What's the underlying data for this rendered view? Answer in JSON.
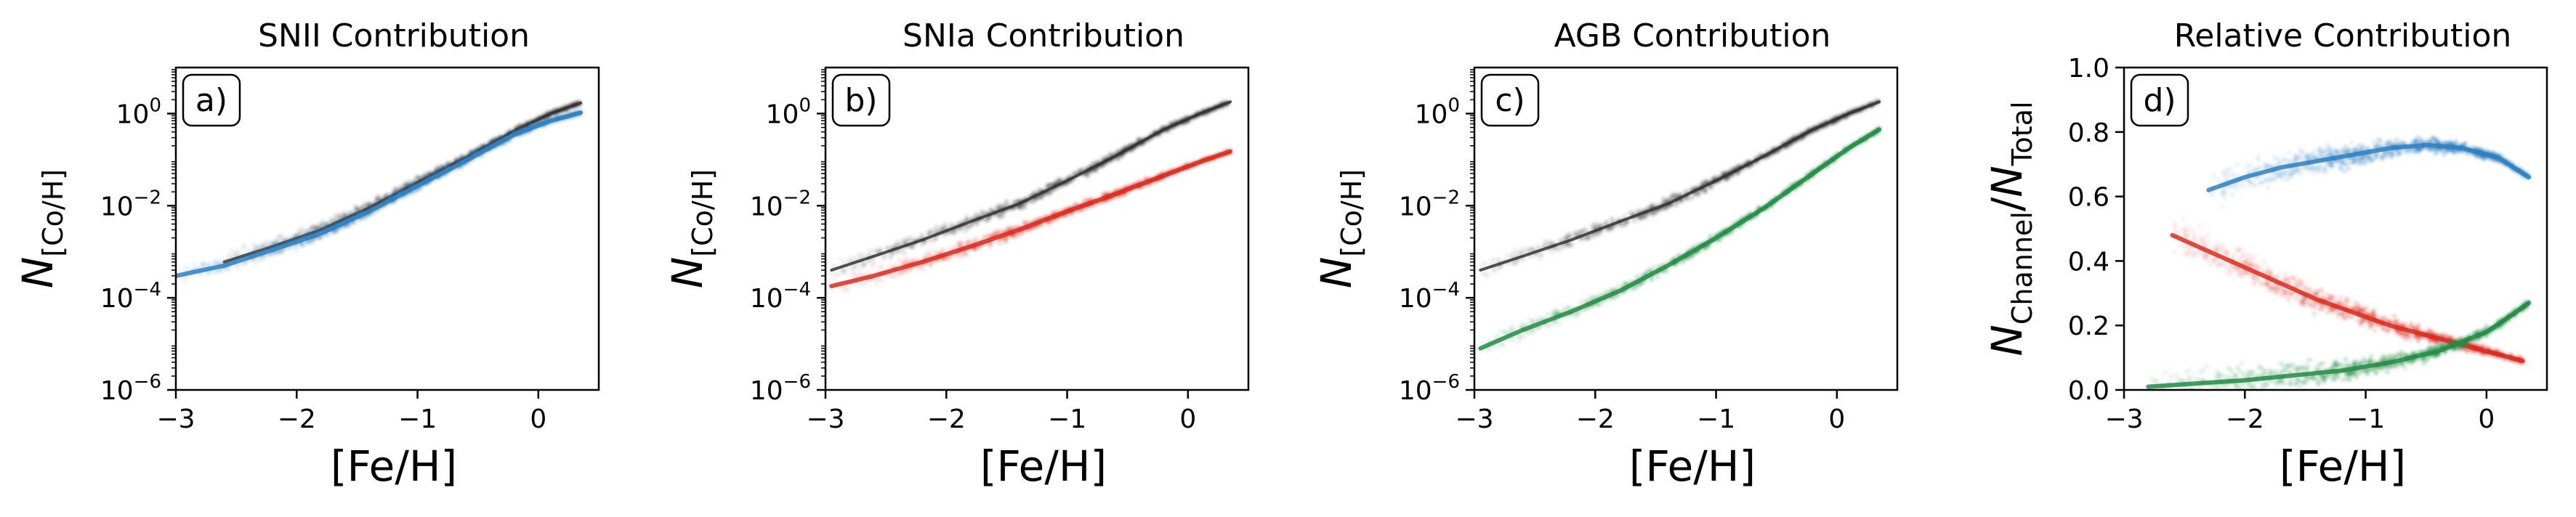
{
  "chart_data": [
    {
      "type": "scatter",
      "panel_label": "a)",
      "title": "SNII Contribution",
      "xlabel": "[Fe/H]",
      "ylabel": {
        "base": "N",
        "sub": "[Co/H]"
      },
      "xlim": [
        -3,
        0.5
      ],
      "ylim": [
        1e-06,
        10
      ],
      "yscale": "log",
      "xticks": [
        -3,
        -2,
        -1,
        0
      ],
      "xtick_labels": [
        "−3",
        "−2",
        "−1",
        "0"
      ],
      "yticks": [
        1e-06,
        0.0001,
        0.01,
        1
      ],
      "ytick_labels": [
        {
          "base": "10",
          "exp": "−6"
        },
        {
          "base": "10",
          "exp": "−4"
        },
        {
          "base": "10",
          "exp": "−2"
        },
        {
          "base": "10",
          "exp": "0"
        }
      ],
      "grid": false,
      "series": [
        {
          "role": "total",
          "color": "#333333",
          "x": [
            -2.6,
            -2.2,
            -1.8,
            -1.4,
            -1.0,
            -0.6,
            -0.2,
            0.1,
            0.35
          ],
          "y": [
            0.0006,
            0.0013,
            0.003,
            0.009,
            0.032,
            0.11,
            0.42,
            1.0,
            1.7
          ]
        },
        {
          "role": "channel",
          "color": "#2e7fc0",
          "x": [
            -3.0,
            -2.6,
            -2.2,
            -1.8,
            -1.4,
            -1.0,
            -0.6,
            -0.2,
            0.1,
            0.35
          ],
          "y": [
            0.0003,
            0.0005,
            0.0011,
            0.0025,
            0.0075,
            0.027,
            0.095,
            0.35,
            0.7,
            1.05
          ]
        }
      ]
    },
    {
      "type": "scatter",
      "panel_label": "b)",
      "title": "SNIa Contribution",
      "xlabel": "[Fe/H]",
      "ylabel": {
        "base": "N",
        "sub": "[Co/H]"
      },
      "xlim": [
        -3,
        0.5
      ],
      "ylim": [
        1e-06,
        10
      ],
      "yscale": "log",
      "xticks": [
        -3,
        -2,
        -1,
        0
      ],
      "xtick_labels": [
        "−3",
        "−2",
        "−1",
        "0"
      ],
      "yticks": [
        1e-06,
        0.0001,
        0.01,
        1
      ],
      "ytick_labels": [
        {
          "base": "10",
          "exp": "−6"
        },
        {
          "base": "10",
          "exp": "−4"
        },
        {
          "base": "10",
          "exp": "−2"
        },
        {
          "base": "10",
          "exp": "0"
        }
      ],
      "grid": false,
      "series": [
        {
          "role": "total",
          "color": "#333333",
          "x": [
            -2.95,
            -2.6,
            -2.2,
            -1.8,
            -1.4,
            -1.0,
            -0.6,
            -0.2,
            0.1,
            0.35
          ],
          "y": [
            0.0004,
            0.0008,
            0.0018,
            0.0045,
            0.011,
            0.035,
            0.12,
            0.45,
            1.0,
            1.8
          ]
        },
        {
          "role": "channel",
          "color": "#d92b1f",
          "x": [
            -2.95,
            -2.6,
            -2.2,
            -1.8,
            -1.4,
            -1.0,
            -0.6,
            -0.2,
            0.1,
            0.35
          ],
          "y": [
            0.00018,
            0.0003,
            0.0006,
            0.0013,
            0.003,
            0.0075,
            0.018,
            0.045,
            0.09,
            0.15
          ]
        }
      ]
    },
    {
      "type": "scatter",
      "panel_label": "c)",
      "title": "AGB Contribution",
      "xlabel": "[Fe/H]",
      "ylabel": {
        "base": "N",
        "sub": "[Co/H]"
      },
      "xlim": [
        -3,
        0.5
      ],
      "ylim": [
        1e-06,
        10
      ],
      "yscale": "log",
      "xticks": [
        -3,
        -2,
        -1,
        0
      ],
      "xtick_labels": [
        "−3",
        "−2",
        "−1",
        "0"
      ],
      "yticks": [
        1e-06,
        0.0001,
        0.01,
        1
      ],
      "ytick_labels": [
        {
          "base": "10",
          "exp": "−6"
        },
        {
          "base": "10",
          "exp": "−4"
        },
        {
          "base": "10",
          "exp": "−2"
        },
        {
          "base": "10",
          "exp": "0"
        }
      ],
      "grid": false,
      "series": [
        {
          "role": "total",
          "color": "#333333",
          "x": [
            -2.95,
            -2.6,
            -2.2,
            -1.8,
            -1.4,
            -1.0,
            -0.6,
            -0.2,
            0.1,
            0.35
          ],
          "y": [
            0.0004,
            0.0008,
            0.0018,
            0.0045,
            0.011,
            0.035,
            0.12,
            0.45,
            1.0,
            1.8
          ]
        },
        {
          "role": "channel",
          "color": "#238b45",
          "x": [
            -2.95,
            -2.6,
            -2.2,
            -1.8,
            -1.4,
            -1.0,
            -0.6,
            -0.2,
            0.1,
            0.35
          ],
          "y": [
            8e-06,
            2e-05,
            5e-05,
            0.00014,
            0.0005,
            0.002,
            0.009,
            0.05,
            0.18,
            0.45
          ]
        }
      ]
    },
    {
      "type": "scatter",
      "panel_label": "d)",
      "title": "Relative Contribution",
      "xlabel": "[Fe/H]",
      "ylabel": {
        "base": "N",
        "sub": "Channel",
        "sep": "/",
        "base2": "N",
        "sub2": "Total"
      },
      "xlim": [
        -3,
        0.5
      ],
      "ylim": [
        0,
        1
      ],
      "yscale": "linear",
      "xticks": [
        -3,
        -2,
        -1,
        0
      ],
      "xtick_labels": [
        "−3",
        "−2",
        "−1",
        "0"
      ],
      "yticks": [
        0,
        0.2,
        0.4,
        0.6,
        0.8,
        1.0
      ],
      "ytick_labels": [
        "0.0",
        "0.2",
        "0.4",
        "0.6",
        "0.8",
        "1.0"
      ],
      "grid": false,
      "series": [
        {
          "role": "SNII",
          "color": "#2e7fc0",
          "x": [
            -2.3,
            -2.0,
            -1.7,
            -1.4,
            -1.1,
            -0.8,
            -0.5,
            -0.2,
            0.1,
            0.35
          ],
          "y": [
            0.62,
            0.66,
            0.69,
            0.71,
            0.73,
            0.75,
            0.76,
            0.75,
            0.72,
            0.66
          ]
        },
        {
          "role": "SNIa",
          "color": "#d92b1f",
          "x": [
            -2.6,
            -2.3,
            -2.0,
            -1.7,
            -1.4,
            -1.1,
            -0.8,
            -0.5,
            -0.2,
            0.1,
            0.3
          ],
          "y": [
            0.48,
            0.43,
            0.38,
            0.33,
            0.28,
            0.24,
            0.2,
            0.17,
            0.14,
            0.11,
            0.09
          ]
        },
        {
          "role": "AGB",
          "color": "#238b45",
          "x": [
            -2.8,
            -2.4,
            -2.0,
            -1.6,
            -1.2,
            -0.8,
            -0.4,
            0.0,
            0.2,
            0.35
          ],
          "y": [
            0.01,
            0.02,
            0.03,
            0.045,
            0.06,
            0.085,
            0.12,
            0.18,
            0.23,
            0.27
          ]
        }
      ]
    }
  ]
}
